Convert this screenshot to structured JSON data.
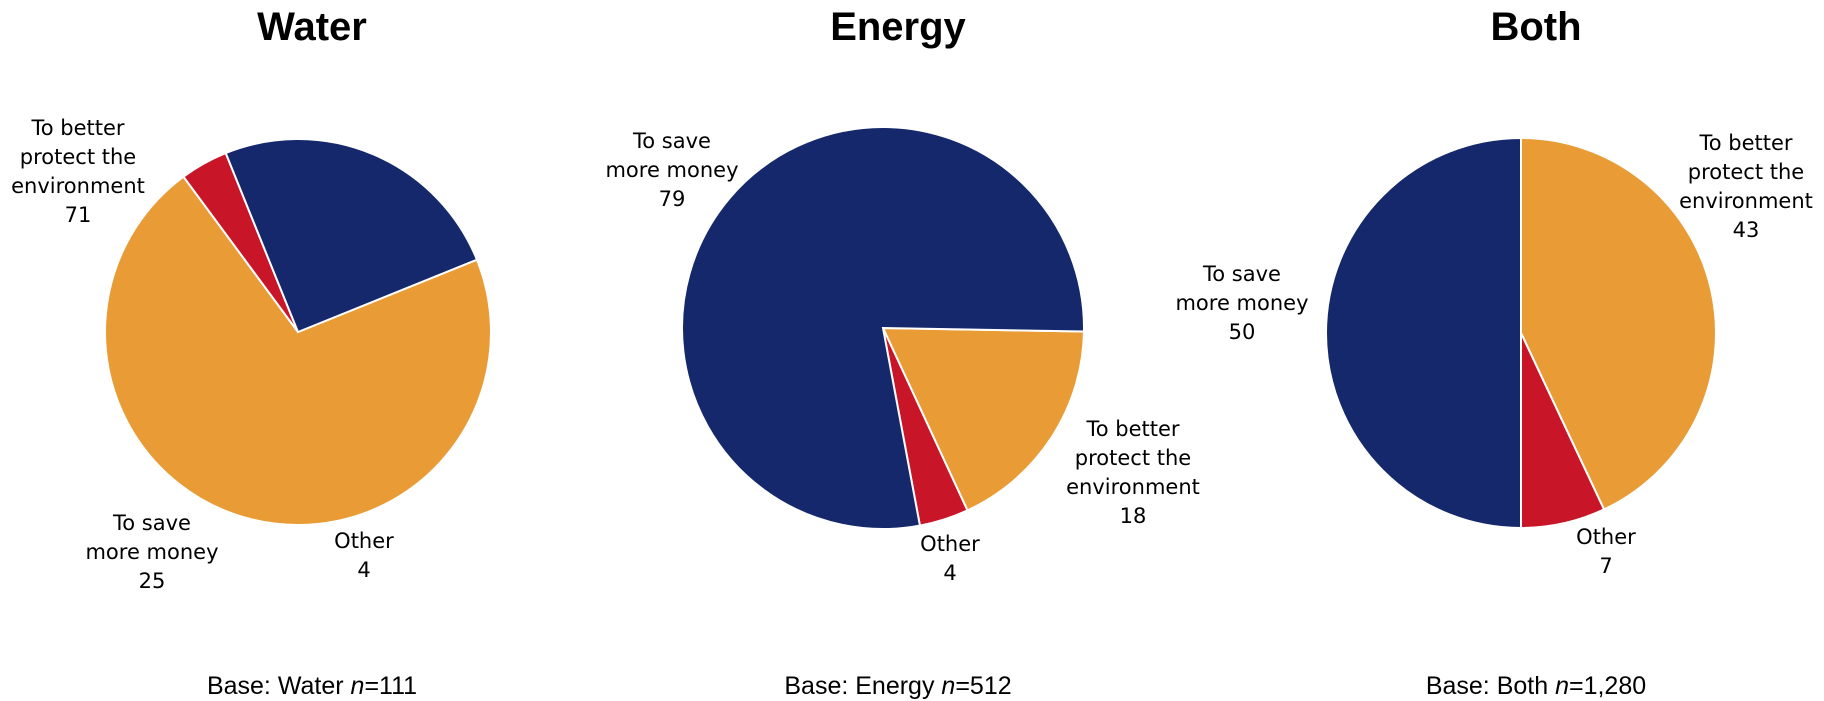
{
  "chart_data": [
    {
      "type": "pie",
      "title": "Water",
      "base": {
        "prefix": "Base: Water ",
        "n_label": "n",
        "n_value": "=111"
      },
      "slices": [
        {
          "name": "To better protect the environment",
          "label_lines": [
            "To better",
            "protect the",
            "environment"
          ],
          "value": 71,
          "color": "#E99C35"
        },
        {
          "name": "Other",
          "label_lines": [
            "Other"
          ],
          "value": 4,
          "color": "#C81528"
        },
        {
          "name": "To save more money",
          "label_lines": [
            "To save",
            "more money"
          ],
          "value": 25,
          "color": "#15286B"
        }
      ]
    },
    {
      "type": "pie",
      "title": "Energy",
      "base": {
        "prefix": "Base: Energy ",
        "n_label": "n",
        "n_value": "=512"
      },
      "slices": [
        {
          "name": "To better protect the environment",
          "label_lines": [
            "To better",
            "protect the",
            "environment"
          ],
          "value": 18,
          "color": "#E99C35"
        },
        {
          "name": "Other",
          "label_lines": [
            "Other"
          ],
          "value": 4,
          "color": "#C81528"
        },
        {
          "name": "To save more money",
          "label_lines": [
            "To save",
            "more money"
          ],
          "value": 79,
          "color": "#15286B"
        }
      ]
    },
    {
      "type": "pie",
      "title": "Both",
      "base": {
        "prefix": "Base: Both ",
        "n_label": "n",
        "n_value": "=1,280"
      },
      "slices": [
        {
          "name": "To better protect the environment",
          "label_lines": [
            "To better",
            "protect the",
            "environment"
          ],
          "value": 43,
          "color": "#E99C35"
        },
        {
          "name": "Other",
          "label_lines": [
            "Other"
          ],
          "value": 7,
          "color": "#C81528"
        },
        {
          "name": "To save more money",
          "label_lines": [
            "To save",
            "more money"
          ],
          "value": 50,
          "color": "#15286B"
        }
      ]
    }
  ]
}
